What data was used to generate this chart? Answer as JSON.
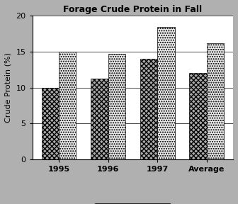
{
  "title": "Forage Crude Protein in Fall",
  "ylabel": "Crude Protein (%)",
  "categories": [
    "1995",
    "1996",
    "1997",
    "Average"
  ],
  "early_values": [
    10.0,
    11.2,
    14.0,
    12.0
  ],
  "late_values": [
    15.0,
    14.7,
    18.5,
    16.2
  ],
  "ylim": [
    0,
    20
  ],
  "yticks": [
    0,
    5,
    10,
    15,
    20
  ],
  "bar_width": 0.35,
  "early_facecolor": "#aaaaaa",
  "late_facecolor": "#e8e8e8",
  "early_hatch": "xxxxx",
  "late_hatch": ".....",
  "background_color": "#b0b0b0",
  "plot_bg_color": "#ffffff",
  "edge_color": "#000000",
  "title_fontsize": 9,
  "axis_label_fontsize": 8,
  "tick_fontsize": 8,
  "legend_fontsize": 8
}
